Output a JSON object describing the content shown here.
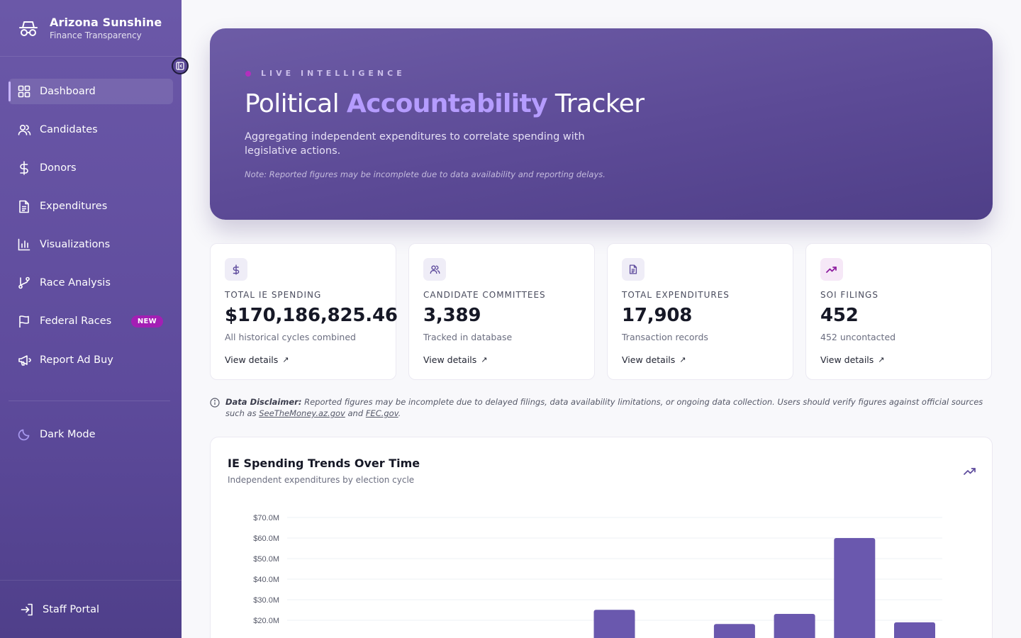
{
  "brand": {
    "title": "Arizona Sunshine",
    "subtitle": "Finance Transparency"
  },
  "sidebar": {
    "items": [
      {
        "label": "Dashboard",
        "icon": "grid-icon",
        "active": true
      },
      {
        "label": "Candidates",
        "icon": "users-icon"
      },
      {
        "label": "Donors",
        "icon": "dollar-icon"
      },
      {
        "label": "Expenditures",
        "icon": "document-icon"
      },
      {
        "label": "Visualizations",
        "icon": "bar-chart-icon"
      },
      {
        "label": "Race Analysis",
        "icon": "branch-icon"
      },
      {
        "label": "Federal Races",
        "icon": "flag-icon",
        "badge": "NEW"
      },
      {
        "label": "Report Ad Buy",
        "icon": "megaphone-icon"
      }
    ],
    "dark_mode": "Dark Mode",
    "staff_portal": "Staff Portal"
  },
  "hero": {
    "eyebrow": "LIVE INTELLIGENCE",
    "title_pre": "Political",
    "title_accent": "Accountability",
    "title_post": "Tracker",
    "description": "Aggregating independent expenditures to correlate spending with legislative actions.",
    "note": "Note: Reported figures may be incomplete due to data availability and reporting delays."
  },
  "stats": [
    {
      "label": "TOTAL IE SPENDING",
      "value": "$170,186,825.46",
      "sub": "All historical cycles combined",
      "link": "View details",
      "icon": "dollar-icon"
    },
    {
      "label": "CANDIDATE COMMITTEES",
      "value": "3,389",
      "sub": "Tracked in database",
      "link": "View details",
      "icon": "users-icon"
    },
    {
      "label": "TOTAL EXPENDITURES",
      "value": "17,908",
      "sub": "Transaction records",
      "link": "View details",
      "icon": "document-icon"
    },
    {
      "label": "SOI FILINGS",
      "value": "452",
      "sub": "452 uncontacted",
      "link": "View details",
      "icon": "trending-up-icon"
    }
  ],
  "disclaimer": {
    "label": "Data Disclaimer:",
    "text": " Reported figures may be incomplete due to delayed filings, data availability limitations, or ongoing data collection. Users should verify figures against official sources such as ",
    "link1": "SeeTheMoney.az.gov",
    "and": " and ",
    "link2": "FEC.gov",
    "end": "."
  },
  "chart": {
    "title": "IE Spending Trends Over Time",
    "subtitle": "Independent expenditures by election cycle"
  },
  "chart_data": {
    "type": "bar",
    "ylim": [
      0,
      70
    ],
    "y_ticks": [
      "$20.0M",
      "$30.0M",
      "$40.0M",
      "$50.0M",
      "$60.0M",
      "$70.0M"
    ],
    "y_tick_values": [
      20,
      30,
      40,
      50,
      60,
      70
    ],
    "grid": true,
    "bar_color": "#6a58ae",
    "values": [
      null,
      null,
      null,
      null,
      null,
      25.1,
      null,
      18.2,
      23.1,
      60.0,
      19.0
    ]
  },
  "colors": {
    "accent": "#b59cff",
    "badge": "#a31fb4",
    "bar": "#6a58ae"
  }
}
